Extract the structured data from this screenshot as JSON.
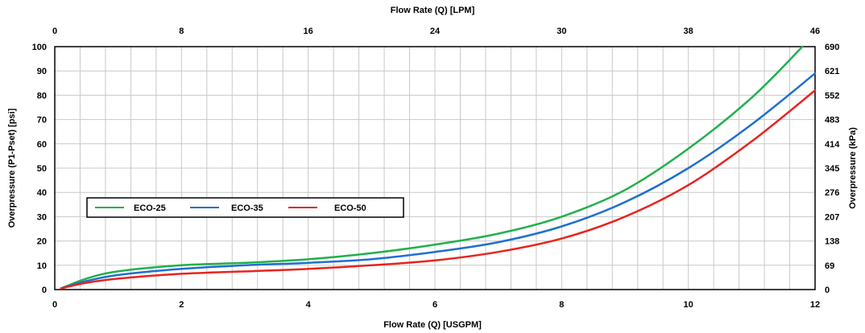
{
  "chart_data": {
    "type": "line",
    "title": "",
    "x_top_label": "Flow Rate (Q) [LPM]",
    "x_bottom_label": "Flow Rate (Q) [USGPM]",
    "y_left_label": "Overpressure (P1-Pset) [psi]",
    "y_right_label": "Overpressure (kPa)",
    "xlim": [
      0,
      12
    ],
    "ylim": [
      0,
      100
    ],
    "x_bottom_ticks": [
      "0",
      "2",
      "4",
      "6",
      "8",
      "10",
      "12"
    ],
    "x_top_ticks": [
      "0",
      "8",
      "16",
      "24",
      "30",
      "38",
      "46"
    ],
    "y_left_ticks": [
      "0",
      "10",
      "20",
      "30",
      "40",
      "50",
      "60",
      "70",
      "80",
      "90",
      "100"
    ],
    "y_right_ticks": [
      "0",
      "69",
      "138",
      "207",
      "276",
      "345",
      "414",
      "483",
      "552",
      "621",
      "690"
    ],
    "grid": true,
    "legend_position": "left-middle",
    "series": [
      {
        "name": "ECO-25",
        "color": "#21b04b",
        "x": [
          0.1,
          0.5,
          1.0,
          2.0,
          3.0,
          4.0,
          5.0,
          6.0,
          7.0,
          8.0,
          9.0,
          10.0,
          11.0,
          11.8
        ],
        "y": [
          0.5,
          4.5,
          7.5,
          10.0,
          11.0,
          12.5,
          15.0,
          18.5,
          23.0,
          30.0,
          41.0,
          58.0,
          79.0,
          100.0
        ]
      },
      {
        "name": "ECO-35",
        "color": "#1f6fd0",
        "x": [
          0.1,
          0.5,
          1.0,
          2.0,
          3.0,
          4.0,
          5.0,
          6.0,
          7.0,
          8.0,
          9.0,
          10.0,
          11.0,
          12.0
        ],
        "y": [
          0.5,
          3.5,
          6.0,
          8.5,
          10.0,
          11.0,
          12.5,
          15.5,
          19.5,
          26.0,
          36.0,
          50.0,
          68.0,
          89.0
        ]
      },
      {
        "name": "ECO-50",
        "color": "#e8231e",
        "x": [
          0.1,
          0.5,
          1.0,
          2.0,
          3.0,
          4.0,
          5.0,
          6.0,
          7.0,
          8.0,
          9.0,
          10.0,
          11.0,
          12.0
        ],
        "y": [
          0.5,
          2.8,
          4.5,
          6.5,
          7.5,
          8.5,
          10.0,
          12.0,
          15.5,
          21.0,
          30.0,
          43.0,
          61.0,
          82.0
        ]
      }
    ]
  }
}
